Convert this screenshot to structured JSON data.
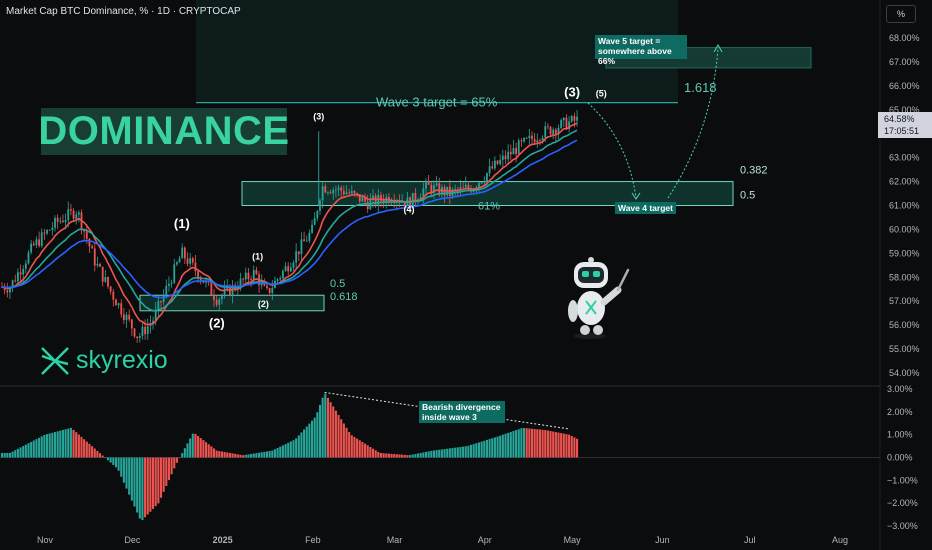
{
  "header": {
    "symbol_line": "Market Cap BTC Dominance, % · 1D · CRYPTOCAP",
    "unit_button": "%"
  },
  "overlay": {
    "title_box": "DOMINANCE",
    "brand": "skyrexio",
    "wave3_target": "Wave 3 target = 65%",
    "wave5_note": [
      "Wave 5 target =",
      "somewhere above 66%"
    ],
    "wave4_note": "Wave 4 target",
    "divergence_note": [
      "Bearish divergence",
      "inside wave 3"
    ],
    "fib_1618": "1.618",
    "fib_0382": "0.382",
    "fib_05_upper": "0.5",
    "fib_61pct": "61%",
    "fib_05_lower": "0.5",
    "fib_0618_lower": "0.618",
    "wave_labels": [
      {
        "text": "(1)",
        "date": "2024-12-18",
        "y": 60.05
      },
      {
        "text": "(2)",
        "date": "2024-12-30",
        "y": 55.9
      },
      {
        "text": "(1)",
        "date": "2025-01-13",
        "y": 58.75
      },
      {
        "text": "(2)",
        "date": "2025-01-15",
        "y": 56.75
      },
      {
        "text": "(3)",
        "date": "2025-02-03",
        "y": 64.6
      },
      {
        "text": "(4)",
        "date": "2025-03-06",
        "y": 60.7
      },
      {
        "text": "(3)",
        "date": "2025-05-01",
        "y": 65.55
      },
      {
        "text": "(5)",
        "date": "2025-05-11",
        "y": 65.55
      }
    ],
    "colors": {
      "accent": "#26a69a",
      "bull": "#26a69a",
      "bear": "#ef5350",
      "brand": "#2bd2a6",
      "title_bg": "#173d35"
    }
  },
  "price_tag": {
    "value": "64.58%",
    "countdown": "17:05:51"
  },
  "chart_data": [
    {
      "type": "candlestick",
      "title": "Market Cap BTC Dominance, %",
      "x_ticks": [
        "Nov",
        "Dec",
        "2025",
        "Feb",
        "Mar",
        "Apr",
        "May",
        "Jun",
        "Jul",
        "Aug"
      ],
      "y_ticks": [
        "54.00%",
        "55.00%",
        "56.00%",
        "57.00%",
        "58.00%",
        "59.00%",
        "60.00%",
        "61.00%",
        "62.00%",
        "63.00%",
        "64.00%",
        "65.00%",
        "66.00%",
        "67.00%",
        "68.00%"
      ],
      "ylim": [
        53.5,
        69.2
      ],
      "last_value": 64.58,
      "approx_close_path": [
        {
          "date": "2024-10-20",
          "y": 57.6
        },
        {
          "date": "2024-10-28",
          "y": 59.3
        },
        {
          "date": "2024-11-05",
          "y": 60.3
        },
        {
          "date": "2024-11-12",
          "y": 60.8
        },
        {
          "date": "2024-11-18",
          "y": 58.7
        },
        {
          "date": "2024-11-24",
          "y": 57.3
        },
        {
          "date": "2024-11-29",
          "y": 56.3
        },
        {
          "date": "2024-12-03",
          "y": 55.5
        },
        {
          "date": "2024-12-08",
          "y": 56.2
        },
        {
          "date": "2024-12-13",
          "y": 57.6
        },
        {
          "date": "2024-12-18",
          "y": 59.0
        },
        {
          "date": "2024-12-24",
          "y": 58.1
        },
        {
          "date": "2024-12-30",
          "y": 57.1
        },
        {
          "date": "2025-01-05",
          "y": 57.6
        },
        {
          "date": "2025-01-12",
          "y": 58.2
        },
        {
          "date": "2025-01-16",
          "y": 57.3
        },
        {
          "date": "2025-01-24",
          "y": 58.6
        },
        {
          "date": "2025-02-01",
          "y": 60.0
        },
        {
          "date": "2025-02-04",
          "y": 61.8
        },
        {
          "date": "2025-02-12",
          "y": 61.6
        },
        {
          "date": "2025-02-20",
          "y": 61.1
        },
        {
          "date": "2025-03-01",
          "y": 61.4
        },
        {
          "date": "2025-03-06",
          "y": 61.1
        },
        {
          "date": "2025-03-12",
          "y": 61.8
        },
        {
          "date": "2025-03-20",
          "y": 61.5
        },
        {
          "date": "2025-03-28",
          "y": 61.8
        },
        {
          "date": "2025-04-04",
          "y": 62.6
        },
        {
          "date": "2025-04-12",
          "y": 63.4
        },
        {
          "date": "2025-04-20",
          "y": 64.0
        },
        {
          "date": "2025-04-28",
          "y": 64.4
        },
        {
          "date": "2025-05-03",
          "y": 64.58
        }
      ],
      "series": [
        {
          "color": "#ef5350"
        },
        {
          "color": "#26a69a"
        },
        {
          "color": "#2962ff"
        }
      ],
      "zones": {
        "fib_upper_band": [
          61.0,
          62.0
        ],
        "wave3_target_line": 65.3,
        "wave5_target_box": [
          66.75,
          67.6
        ],
        "fib_lower_band": [
          56.6,
          57.25
        ]
      },
      "grid": false
    },
    {
      "type": "bar",
      "title": "Oscillator",
      "y_ticks": [
        "3.00%",
        "2.00%",
        "1.00%",
        "0.00%",
        "−1.00%",
        "−2.00%",
        "−3.00%"
      ],
      "ylim": [
        -3.2,
        3.2
      ],
      "approx_values": [
        {
          "date": "2024-10-20",
          "y": 0.2
        },
        {
          "date": "2024-11-01",
          "y": 1.0
        },
        {
          "date": "2024-11-10",
          "y": 1.3
        },
        {
          "date": "2024-11-18",
          "y": 0.4
        },
        {
          "date": "2024-11-26",
          "y": -0.5
        },
        {
          "date": "2024-12-04",
          "y": -2.8
        },
        {
          "date": "2024-12-10",
          "y": -2.0
        },
        {
          "date": "2024-12-16",
          "y": -0.3
        },
        {
          "date": "2024-12-22",
          "y": 1.1
        },
        {
          "date": "2024-12-30",
          "y": 0.3
        },
        {
          "date": "2025-01-08",
          "y": 0.1
        },
        {
          "date": "2025-01-18",
          "y": 0.3
        },
        {
          "date": "2025-01-26",
          "y": 0.8
        },
        {
          "date": "2025-02-02",
          "y": 1.8
        },
        {
          "date": "2025-02-05",
          "y": 2.85
        },
        {
          "date": "2025-02-14",
          "y": 1.0
        },
        {
          "date": "2025-02-24",
          "y": 0.2
        },
        {
          "date": "2025-03-06",
          "y": 0.1
        },
        {
          "date": "2025-03-14",
          "y": 0.3
        },
        {
          "date": "2025-03-26",
          "y": 0.5
        },
        {
          "date": "2025-04-05",
          "y": 0.9
        },
        {
          "date": "2025-04-14",
          "y": 1.3
        },
        {
          "date": "2025-04-22",
          "y": 1.2
        },
        {
          "date": "2025-04-30",
          "y": 1.0
        },
        {
          "date": "2025-05-03",
          "y": 0.8
        }
      ]
    }
  ]
}
